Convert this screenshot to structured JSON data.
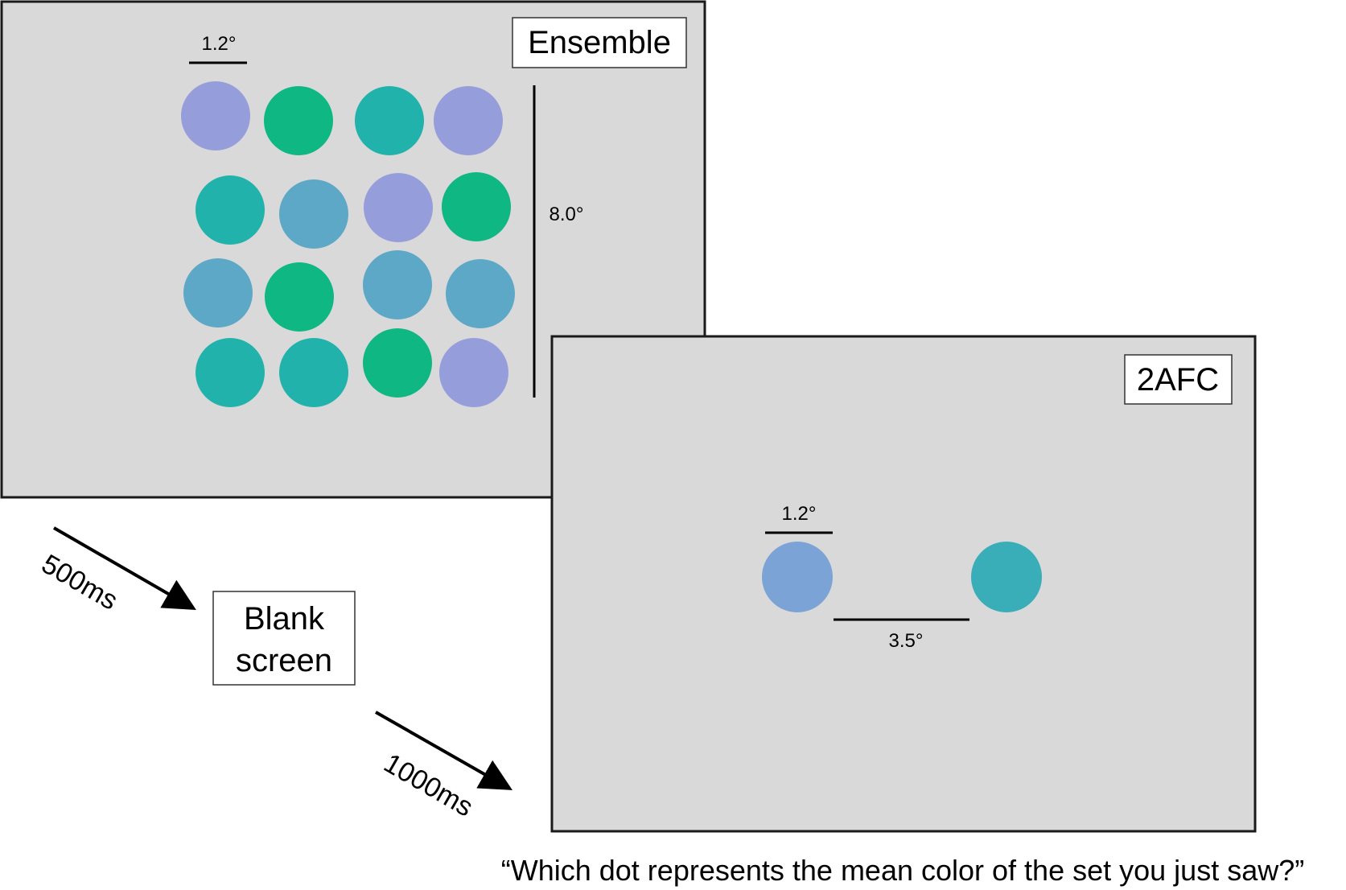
{
  "colors": {
    "panel_bg": "#d9d9d9",
    "panel_border": "#1a1a1a",
    "label_box_bg": "#ffffff",
    "lavender": "#969ddb",
    "green": "#0fb783",
    "teal": "#21b2ab",
    "steel_blue": "#5ea8c7",
    "probe_blue": "#7ba3d6",
    "probe_teal": "#3aaeb8"
  },
  "ensemble": {
    "label": "Ensemble",
    "dot_size_label": "1.2°",
    "height_label": "8.0°",
    "dot_colors": [
      [
        "lavender",
        "green",
        "teal",
        "lavender"
      ],
      [
        "teal",
        "steel_blue",
        "lavender",
        "green"
      ],
      [
        "steel_blue",
        "green",
        "steel_blue",
        "steel_blue"
      ],
      [
        "teal",
        "teal",
        "green",
        "lavender"
      ]
    ]
  },
  "blank": {
    "label_line1": "Blank",
    "label_line2": "screen",
    "arrow_label": "500ms"
  },
  "twoafc": {
    "label": "2AFC",
    "dot_size_label": "1.2°",
    "separation_label": "3.5°",
    "arrow_label": "1000ms",
    "left_dot_color": "probe_blue",
    "right_dot_color": "probe_teal",
    "question": "“Which dot represents the mean color of the set you just saw?”"
  }
}
